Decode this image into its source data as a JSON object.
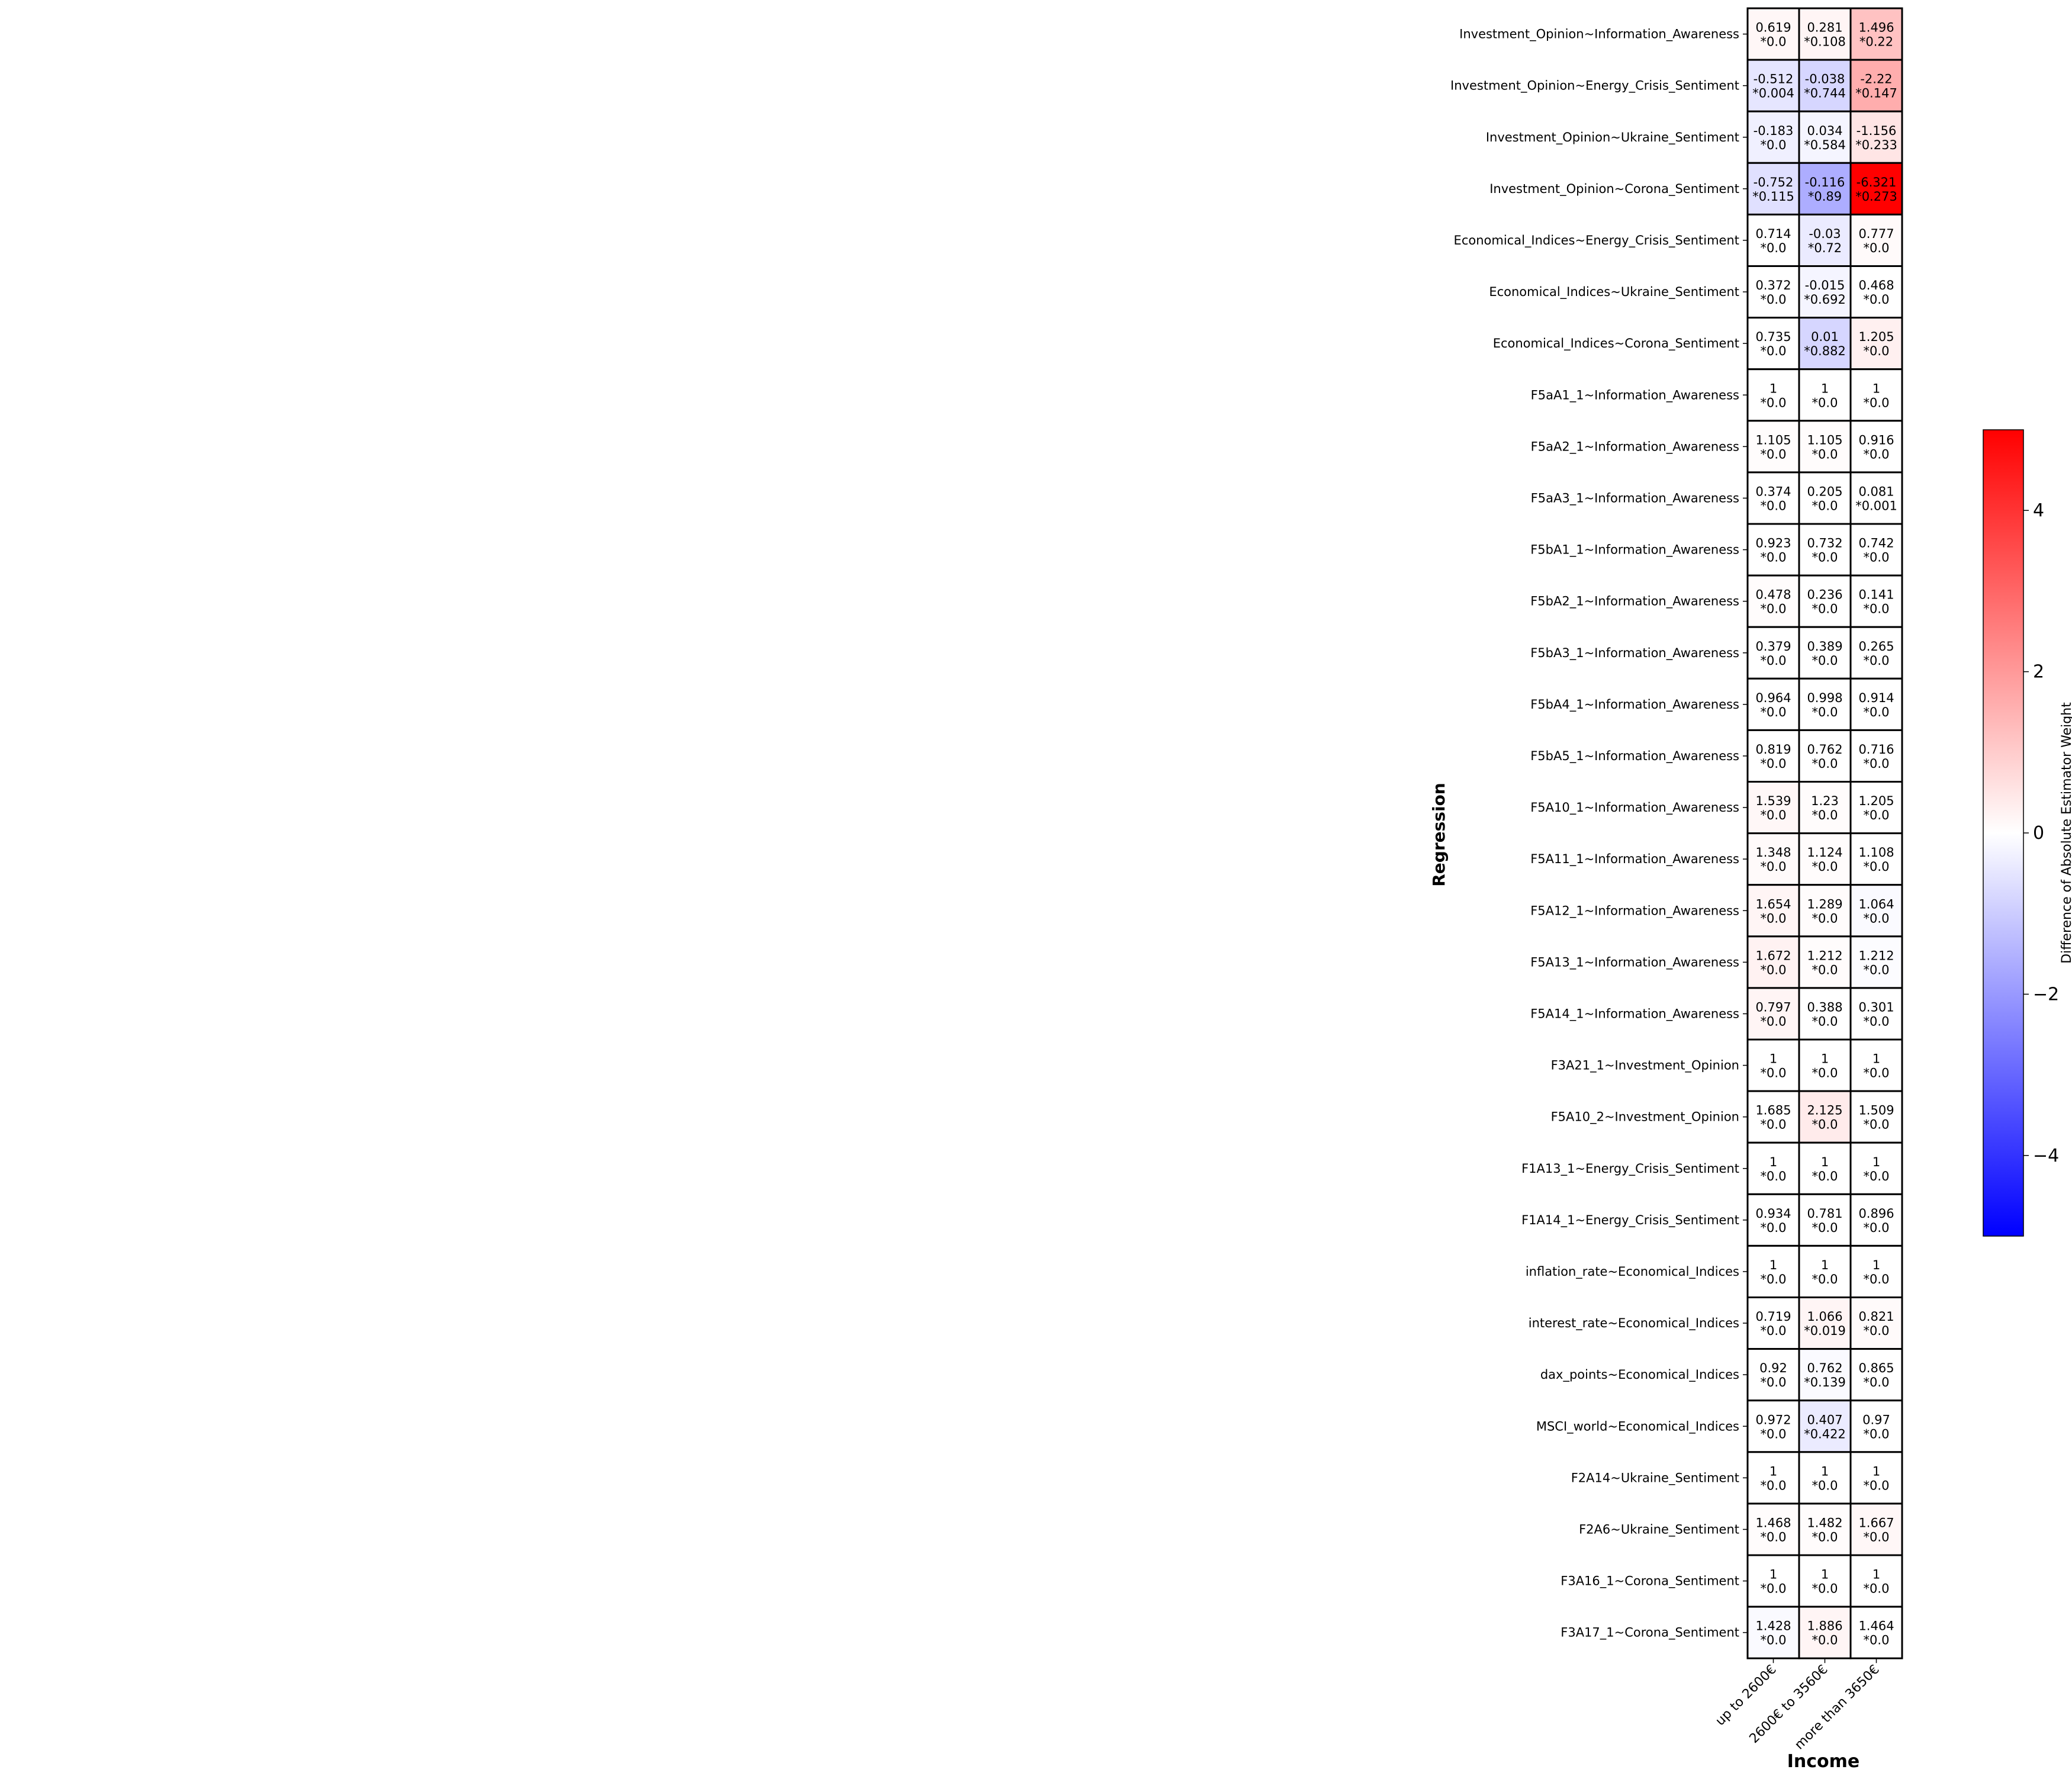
{
  "chart_data": {
    "type": "heatmap",
    "title": "",
    "xlabel": "Income",
    "ylabel": "Regression",
    "colorbar": {
      "label": "Difference of Absolute Estimator Weight",
      "range": [
        -5,
        5
      ],
      "ticks": [
        -4,
        -2,
        0,
        2,
        4
      ],
      "tick_labels": [
        "−4",
        "−2",
        "0",
        "2",
        "4"
      ],
      "colors": {
        "low": "#0000ff",
        "mid": "#ffffff",
        "high": "#ff0000"
      }
    },
    "columns": [
      "up to 2600€",
      "2600€ to 3560€",
      "more than 3650€"
    ],
    "rows": [
      {
        "label": "Investment_Opinion~Information_Awareness",
        "values": [
          0.619,
          0.281,
          1.496
        ],
        "pvalues": [
          "*0.0",
          "*0.108",
          "*0.22"
        ],
        "colors": [
          0.15,
          0.2,
          1.2
        ]
      },
      {
        "label": "Investment_Opinion~Energy_Crisis_Sentiment",
        "values": [
          -0.512,
          -0.038,
          -2.22
        ],
        "pvalues": [
          "*0.004",
          "*0.744",
          "*0.147"
        ],
        "colors": [
          -0.5,
          -0.8,
          1.6
        ]
      },
      {
        "label": "Investment_Opinion~Ukraine_Sentiment",
        "values": [
          -0.183,
          0.034,
          -1.156
        ],
        "pvalues": [
          "*0.0",
          "*0.584",
          "*0.233"
        ],
        "colors": [
          -0.3,
          -0.2,
          0.5
        ]
      },
      {
        "label": "Investment_Opinion~Corona_Sentiment",
        "values": [
          -0.752,
          -0.116,
          -6.321
        ],
        "pvalues": [
          "*0.115",
          "*0.89",
          "*0.273"
        ],
        "colors": [
          -0.6,
          -1.6,
          5.0
        ]
      },
      {
        "label": "Economical_Indices~Energy_Crisis_Sentiment",
        "values": [
          0.714,
          -0.03,
          0.777
        ],
        "pvalues": [
          "*0.0",
          "*0.72",
          "*0.0"
        ],
        "colors": [
          0.0,
          -0.4,
          0.1
        ]
      },
      {
        "label": "Economical_Indices~Ukraine_Sentiment",
        "values": [
          0.372,
          -0.015,
          0.468
        ],
        "pvalues": [
          "*0.0",
          "*0.692",
          "*0.0"
        ],
        "colors": [
          0.0,
          -0.2,
          0.0
        ]
      },
      {
        "label": "Economical_Indices~Corona_Sentiment",
        "values": [
          0.735,
          0.01,
          1.205
        ],
        "pvalues": [
          "*0.0",
          "*0.882",
          "*0.0"
        ],
        "colors": [
          0.0,
          -0.8,
          0.3
        ]
      },
      {
        "label": "F5aA1_1~Information_Awareness",
        "values": [
          1.0,
          1.0,
          1.0
        ],
        "pvalues": [
          "*0.0",
          "*0.0",
          "*0.0"
        ],
        "colors": [
          0.0,
          0.0,
          0.0
        ]
      },
      {
        "label": "F5aA2_1~Information_Awareness",
        "values": [
          1.105,
          1.105,
          0.916
        ],
        "pvalues": [
          "*0.0",
          "*0.0",
          "*0.0"
        ],
        "colors": [
          0.05,
          0.05,
          0.0
        ]
      },
      {
        "label": "F5aA3_1~Information_Awareness",
        "values": [
          0.374,
          0.205,
          0.081
        ],
        "pvalues": [
          "*0.0",
          "*0.0",
          "*0.001"
        ],
        "colors": [
          0.0,
          0.0,
          0.0
        ]
      },
      {
        "label": "F5bA1_1~Information_Awareness",
        "values": [
          0.923,
          0.732,
          0.742
        ],
        "pvalues": [
          "*0.0",
          "*0.0",
          "*0.0"
        ],
        "colors": [
          0.0,
          0.0,
          0.0
        ]
      },
      {
        "label": "F5bA2_1~Information_Awareness",
        "values": [
          0.478,
          0.236,
          0.141
        ],
        "pvalues": [
          "*0.0",
          "*0.0",
          "*0.0"
        ],
        "colors": [
          0.05,
          0.0,
          0.0
        ]
      },
      {
        "label": "F5bA3_1~Information_Awareness",
        "values": [
          0.379,
          0.389,
          0.265
        ],
        "pvalues": [
          "*0.0",
          "*0.0",
          "*0.0"
        ],
        "colors": [
          0.0,
          0.0,
          0.0
        ]
      },
      {
        "label": "F5bA4_1~Information_Awareness",
        "values": [
          0.964,
          0.998,
          0.914
        ],
        "pvalues": [
          "*0.0",
          "*0.0",
          "*0.0"
        ],
        "colors": [
          0.0,
          0.0,
          0.0
        ]
      },
      {
        "label": "F5bA5_1~Information_Awareness",
        "values": [
          0.819,
          0.762,
          0.716
        ],
        "pvalues": [
          "*0.0",
          "*0.0",
          "*0.0"
        ],
        "colors": [
          0.0,
          0.0,
          0.0
        ]
      },
      {
        "label": "F5A10_1~Information_Awareness",
        "values": [
          1.539,
          1.23,
          1.205
        ],
        "pvalues": [
          "*0.0",
          "*0.0",
          "*0.0"
        ],
        "colors": [
          0.15,
          0.05,
          0.0
        ]
      },
      {
        "label": "F5A11_1~Information_Awareness",
        "values": [
          1.348,
          1.124,
          1.108
        ],
        "pvalues": [
          "*0.0",
          "*0.0",
          "*0.0"
        ],
        "colors": [
          0.1,
          0.05,
          0.0
        ]
      },
      {
        "label": "F5A12_1~Information_Awareness",
        "values": [
          1.654,
          1.289,
          1.064
        ],
        "pvalues": [
          "*0.0",
          "*0.0",
          "*0.0"
        ],
        "colors": [
          0.2,
          0.05,
          -0.1
        ]
      },
      {
        "label": "F5A13_1~Information_Awareness",
        "values": [
          1.672,
          1.212,
          1.212
        ],
        "pvalues": [
          "*0.0",
          "*0.0",
          "*0.0"
        ],
        "colors": [
          0.25,
          0.05,
          -0.05
        ]
      },
      {
        "label": "F5A14_1~Information_Awareness",
        "values": [
          0.797,
          0.388,
          0.301
        ],
        "pvalues": [
          "*0.0",
          "*0.0",
          "*0.0"
        ],
        "colors": [
          0.2,
          0.0,
          0.0
        ]
      },
      {
        "label": "F3A21_1~Investment_Opinion",
        "values": [
          1.0,
          1.0,
          1.0
        ],
        "pvalues": [
          "*0.0",
          "*0.0",
          "*0.0"
        ],
        "colors": [
          0.0,
          0.0,
          0.0
        ]
      },
      {
        "label": "F5A10_2~Investment_Opinion",
        "values": [
          1.685,
          2.125,
          1.509
        ],
        "pvalues": [
          "*0.0",
          "*0.0",
          "*0.0"
        ],
        "colors": [
          0.0,
          0.4,
          0.0
        ]
      },
      {
        "label": "F1A13_1~Energy_Crisis_Sentiment",
        "values": [
          1.0,
          1.0,
          1.0
        ],
        "pvalues": [
          "*0.0",
          "*0.0",
          "*0.0"
        ],
        "colors": [
          0.0,
          0.0,
          0.0
        ]
      },
      {
        "label": "F1A14_1~Energy_Crisis_Sentiment",
        "values": [
          0.934,
          0.781,
          0.896
        ],
        "pvalues": [
          "*0.0",
          "*0.0",
          "*0.0"
        ],
        "colors": [
          0.0,
          0.0,
          0.0
        ]
      },
      {
        "label": "inflation_rate~Economical_Indices",
        "values": [
          1.0,
          1.0,
          1.0
        ],
        "pvalues": [
          "*0.0",
          "*0.0",
          "*0.0"
        ],
        "colors": [
          0.0,
          0.0,
          0.0
        ]
      },
      {
        "label": "interest_rate~Economical_Indices",
        "values": [
          0.719,
          1.066,
          0.821
        ],
        "pvalues": [
          "*0.0",
          "*0.019",
          "*0.0"
        ],
        "colors": [
          0.0,
          0.2,
          0.1
        ]
      },
      {
        "label": "dax_points~Economical_Indices",
        "values": [
          0.92,
          0.762,
          0.865
        ],
        "pvalues": [
          "*0.0",
          "*0.139",
          "*0.0"
        ],
        "colors": [
          0.0,
          -0.1,
          0.0
        ]
      },
      {
        "label": "MSCI_world~Economical_Indices",
        "values": [
          0.972,
          0.407,
          0.97
        ],
        "pvalues": [
          "*0.0",
          "*0.422",
          "*0.0"
        ],
        "colors": [
          0.0,
          -0.4,
          0.0
        ]
      },
      {
        "label": "F2A14~Ukraine_Sentiment",
        "values": [
          1.0,
          1.0,
          1.0
        ],
        "pvalues": [
          "*0.0",
          "*0.0",
          "*0.0"
        ],
        "colors": [
          0.0,
          0.0,
          0.0
        ]
      },
      {
        "label": "F2A6~Ukraine_Sentiment",
        "values": [
          1.468,
          1.482,
          1.667
        ],
        "pvalues": [
          "*0.0",
          "*0.0",
          "*0.0"
        ],
        "colors": [
          0.05,
          0.05,
          0.15
        ]
      },
      {
        "label": "F3A16_1~Corona_Sentiment",
        "values": [
          1.0,
          1.0,
          1.0
        ],
        "pvalues": [
          "*0.0",
          "*0.0",
          "*0.0"
        ],
        "colors": [
          0.0,
          0.0,
          0.0
        ]
      },
      {
        "label": "F3A17_1~Corona_Sentiment",
        "values": [
          1.428,
          1.886,
          1.464
        ],
        "pvalues": [
          "*0.0",
          "*0.0",
          "*0.0"
        ],
        "colors": [
          -0.1,
          0.2,
          0.0
        ]
      }
    ]
  }
}
